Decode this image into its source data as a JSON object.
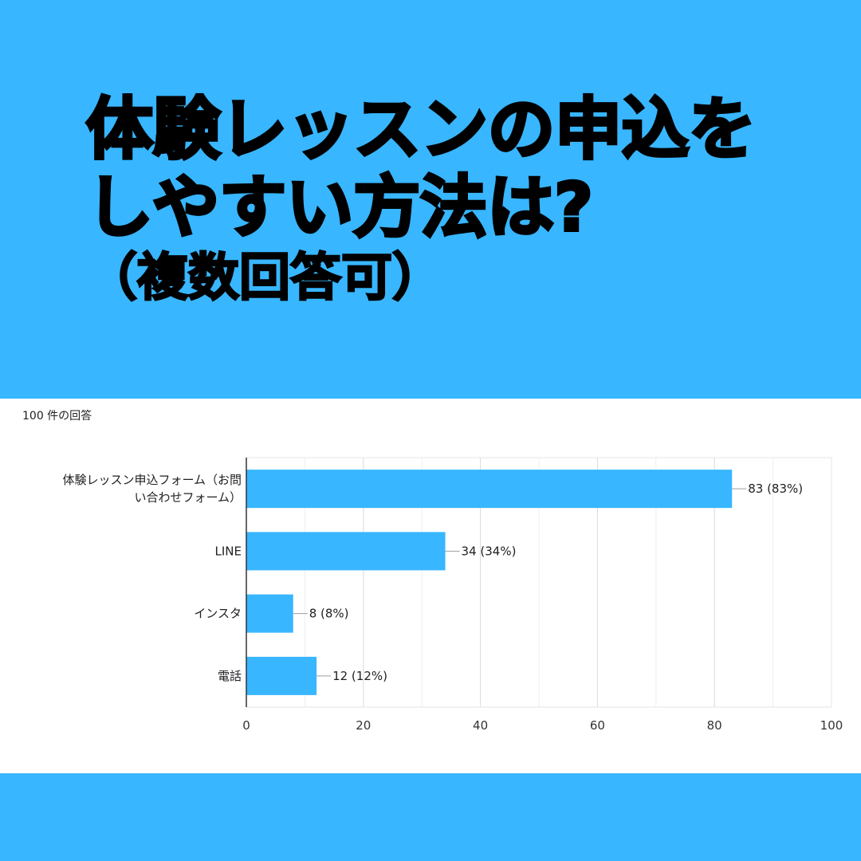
{
  "title": {
    "line1": "体験レッスンの申込を",
    "line2": "しやすい方法は?",
    "note": "（複数回答可）"
  },
  "response_count": "100 件の回答",
  "colors": {
    "background": "#38b6ff",
    "panel": "#ffffff",
    "bar": "#38b6ff"
  },
  "chart_data": {
    "type": "bar",
    "orientation": "horizontal",
    "categories": [
      [
        "体験レッスン申込フォーム（お問",
        "い合わせフォーム）"
      ],
      [
        "LINE"
      ],
      [
        "インスタ"
      ],
      [
        "電話"
      ]
    ],
    "values": [
      83,
      34,
      8,
      12
    ],
    "data_labels": [
      "83 (83%)",
      "34 (34%)",
      "8 (8%)",
      "12 (12%)"
    ],
    "xlim": [
      0,
      100
    ],
    "xticks": [
      0,
      20,
      40,
      60,
      80,
      100
    ],
    "grid": true,
    "legend": "none"
  }
}
